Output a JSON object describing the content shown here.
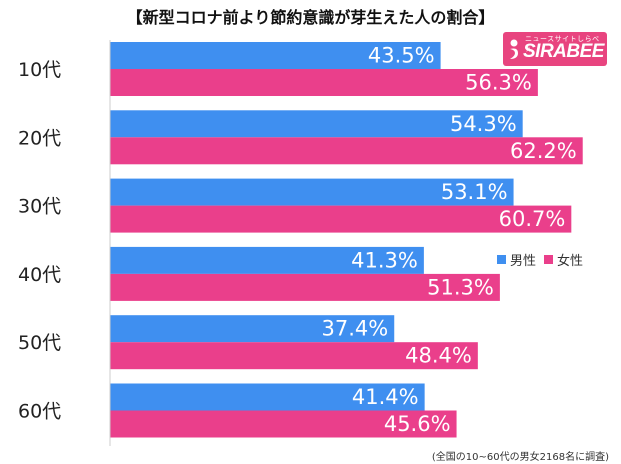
{
  "title": "【新型コロナ前より節約意識が芽生えた人の割合】",
  "logo": {
    "sub": "ニュースサイトしらべぇ",
    "main": "SIRABEE"
  },
  "legend": {
    "male": "男性",
    "female": "女性"
  },
  "note": "(全国の10~60代の男女2168名に調査)",
  "colors": {
    "male": "#3f8ff0",
    "female": "#ea3f8b",
    "logo": "#e8447f"
  },
  "chart_data": {
    "type": "bar",
    "orientation": "horizontal",
    "categories": [
      "10代",
      "20代",
      "30代",
      "40代",
      "50代",
      "60代"
    ],
    "series": [
      {
        "name": "男性",
        "values": [
          43.5,
          54.3,
          53.1,
          41.3,
          37.4,
          41.4
        ]
      },
      {
        "name": "女性",
        "values": [
          56.3,
          62.2,
          60.7,
          51.3,
          48.4,
          45.6
        ]
      }
    ],
    "value_labels": {
      "男性": [
        "43.5%",
        "54.3%",
        "53.1%",
        "41.3%",
        "37.4%",
        "41.4%"
      ],
      "女性": [
        "56.3%",
        "62.2%",
        "60.7%",
        "51.3%",
        "48.4%",
        "45.6%"
      ]
    },
    "unit": "%",
    "xlim": [
      0,
      100
    ],
    "grid": false,
    "legend_position": "right"
  }
}
